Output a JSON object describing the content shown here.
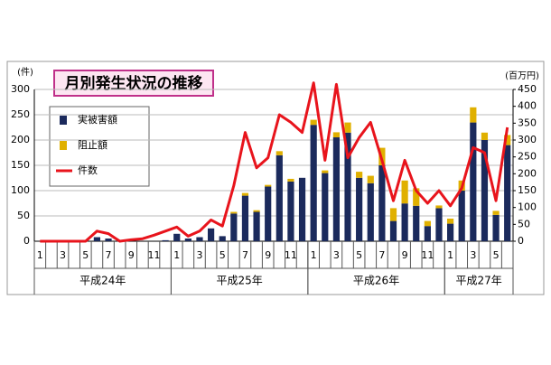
{
  "chart_data": {
    "type": "bar_line",
    "title": "月別発生状況の推移",
    "y_label": "(件)",
    "y2_label": "(百万円)",
    "categories": [
      "1",
      null,
      "3",
      null,
      "5",
      null,
      "7",
      null,
      "9",
      null,
      "11",
      null,
      "1",
      null,
      "3",
      null,
      "5",
      null,
      "7",
      null,
      "9",
      null,
      "11",
      null,
      "1",
      null,
      "3",
      null,
      "5",
      null,
      "7",
      null,
      "9",
      null,
      "11",
      null,
      "1",
      null,
      "3",
      null,
      "5",
      null
    ],
    "year_labels": [
      "平成24年",
      "平成25年",
      "平成26年",
      "平成27年"
    ],
    "ylim": [
      0,
      300
    ],
    "yticks": [
      0,
      50,
      100,
      150,
      200,
      250,
      300
    ],
    "y2lim": [
      0,
      450
    ],
    "y2ticks": [
      0,
      50,
      100,
      150,
      200,
      250,
      300,
      350,
      400,
      450
    ],
    "grid": true,
    "series": [
      {
        "name": "実被害額",
        "color": "#1b2a5c",
        "kind": "bar",
        "axis": "y2",
        "values": [
          0,
          0,
          0,
          0,
          0,
          12,
          8,
          0,
          0,
          0,
          0,
          3,
          22,
          8,
          12,
          38,
          15,
          82,
          135,
          87,
          162,
          255,
          177,
          188,
          345,
          202,
          308,
          322,
          188,
          172,
          225,
          60,
          112,
          105,
          45,
          98,
          52,
          150,
          352,
          300,
          78,
          285
        ]
      },
      {
        "name": "阻止額",
        "color": "#e0b000",
        "kind": "bar",
        "axis": "y2",
        "values": [
          0,
          0,
          0,
          0,
          0,
          0,
          0,
          0,
          0,
          0,
          0,
          0,
          0,
          0,
          0,
          0,
          0,
          5,
          8,
          5,
          5,
          12,
          8,
          0,
          15,
          8,
          15,
          30,
          18,
          22,
          52,
          38,
          68,
          52,
          15,
          8,
          15,
          30,
          45,
          22,
          12,
          30
        ]
      },
      {
        "name": "件数",
        "color": "#e8141c",
        "kind": "line",
        "axis": "y",
        "values": [
          0,
          0,
          0,
          0,
          0,
          20,
          15,
          0,
          3,
          5,
          12,
          20,
          28,
          10,
          20,
          42,
          30,
          110,
          215,
          145,
          165,
          250,
          235,
          215,
          313,
          160,
          310,
          165,
          205,
          235,
          160,
          80,
          160,
          100,
          75,
          100,
          70,
          105,
          185,
          175,
          80,
          225
        ]
      }
    ]
  }
}
